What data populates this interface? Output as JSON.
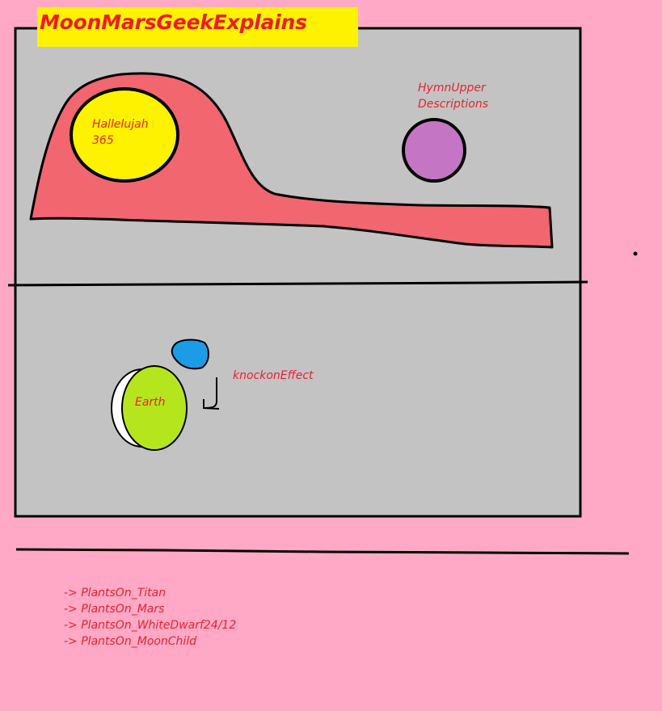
{
  "title": "MoonMarsGeekExplains",
  "labels": {
    "hallelujah": [
      "Hallelujah",
      "365"
    ],
    "hymn": [
      "HymnUpper",
      "Descriptions"
    ],
    "earth": "Earth",
    "knockon": "knockonEffect"
  },
  "plants_list": [
    "-> PlantsOn_Titan",
    "-> PlantsOn_Mars",
    "-> PlantsOn_WhiteDwarf24/12",
    "-> PlantsOn_MoonChild"
  ],
  "colors": {
    "background": "#ffa9c6",
    "panel": "#c3c3c3",
    "banner": "#fff200",
    "title_text": "#ed1c24",
    "label_text": "#e8222e",
    "red_blob": "#f26670",
    "yellow_circle": "#fff200",
    "purple_circle": "#c476c4",
    "blue_blob": "#1c9ce6",
    "green_earth": "#b5e61d",
    "outline": "#000000"
  },
  "icons": [
    "hook-arrow-icon"
  ]
}
